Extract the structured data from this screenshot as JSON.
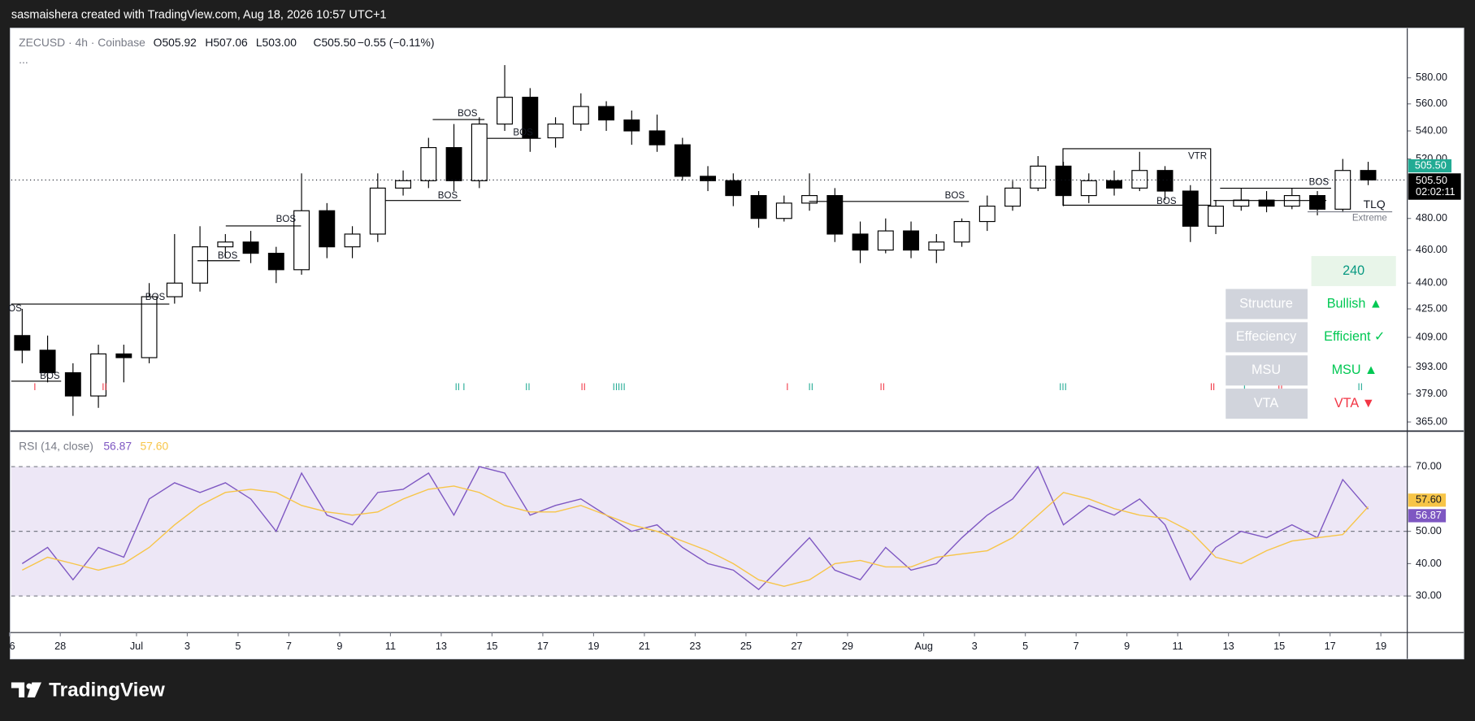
{
  "header": {
    "credit": "sasmaishera created with TradingView.com, Aug 18, 2026 10:57 UTC+1",
    "footer_logo": "TradingView"
  },
  "chart_data": [
    {
      "type": "candlestick",
      "title": "ZECUSD · 4h · Coinbase",
      "legend": [
        "O505.92",
        "H507.06",
        "L503.00",
        "C505.50",
        "−0.55 (−0.11%)"
      ],
      "more": "...",
      "open": [
        410,
        402,
        390,
        378,
        400,
        398,
        432,
        440,
        462,
        465,
        458,
        448,
        485,
        462,
        470,
        500,
        505,
        528,
        505,
        545,
        565,
        535,
        545,
        558,
        548,
        540,
        530,
        508,
        505,
        495,
        480,
        490,
        495,
        470,
        460,
        472,
        460,
        465,
        478,
        488,
        500,
        515,
        495,
        505,
        500,
        512,
        498,
        475,
        488,
        492,
        488,
        495,
        486,
        512
      ],
      "high": [
        425,
        410,
        395,
        405,
        405,
        440,
        470,
        475,
        470,
        472,
        462,
        510,
        490,
        475,
        510,
        512,
        535,
        545,
        550,
        590,
        572,
        550,
        568,
        562,
        555,
        552,
        535,
        515,
        510,
        498,
        495,
        510,
        500,
        478,
        480,
        478,
        470,
        480,
        495,
        505,
        522,
        518,
        510,
        512,
        525,
        515,
        502,
        492,
        500,
        498,
        500,
        498,
        520,
        518
      ],
      "low": [
        395,
        385,
        368,
        372,
        385,
        395,
        428,
        435,
        455,
        452,
        440,
        445,
        455,
        455,
        465,
        495,
        500,
        498,
        500,
        540,
        525,
        528,
        540,
        540,
        530,
        525,
        505,
        498,
        488,
        474,
        478,
        485,
        465,
        452,
        458,
        455,
        452,
        462,
        472,
        485,
        498,
        488,
        490,
        495,
        498,
        492,
        465,
        470,
        485,
        484,
        486,
        482,
        484,
        502
      ],
      "close": [
        402,
        390,
        378,
        400,
        398,
        432,
        440,
        462,
        465,
        458,
        448,
        485,
        462,
        470,
        500,
        505,
        528,
        505,
        545,
        565,
        535,
        545,
        558,
        548,
        540,
        530,
        508,
        505,
        495,
        480,
        490,
        495,
        470,
        460,
        472,
        460,
        465,
        478,
        488,
        500,
        515,
        495,
        505,
        500,
        512,
        498,
        475,
        488,
        492,
        488,
        495,
        486,
        512,
        505.5
      ],
      "up_color": "#ffffff",
      "down_color": "#000000",
      "wick_color": "#000000",
      "last_price_labels": [
        "505.50",
        "505.50"
      ],
      "countdown": "02:02:11",
      "ylim": [
        361,
        620
      ],
      "log_scale": true,
      "yticks": [
        {
          "value": 580,
          "label": "580.00"
        },
        {
          "value": 560,
          "label": "560.00"
        },
        {
          "value": 540,
          "label": "540.00"
        },
        {
          "value": 520,
          "label": "520.00"
        },
        {
          "value": 480,
          "label": "480.00"
        },
        {
          "value": 460,
          "label": "460.00"
        },
        {
          "value": 440,
          "label": "440.00"
        },
        {
          "value": 425,
          "label": "425.00"
        },
        {
          "value": 409,
          "label": "409.00"
        },
        {
          "value": 393,
          "label": "393.00"
        },
        {
          "value": 379,
          "label": "379.00"
        },
        {
          "value": 365,
          "label": "365.00"
        }
      ],
      "xlim": [
        0.07,
        55.04
      ],
      "xticks": [
        {
          "value": 0,
          "label": "6"
        },
        {
          "value": 2,
          "label": "28"
        },
        {
          "value": 5,
          "label": "Jul"
        },
        {
          "value": 7,
          "label": "3"
        },
        {
          "value": 9,
          "label": "5"
        },
        {
          "value": 11,
          "label": "7"
        },
        {
          "value": 13,
          "label": "9"
        },
        {
          "value": 15,
          "label": "11"
        },
        {
          "value": 17,
          "label": "13"
        },
        {
          "value": 19,
          "label": "15"
        },
        {
          "value": 21,
          "label": "17"
        },
        {
          "value": 23,
          "label": "19"
        },
        {
          "value": 25,
          "label": "21"
        },
        {
          "value": 27,
          "label": "23"
        },
        {
          "value": 29,
          "label": "25"
        },
        {
          "value": 31,
          "label": "27"
        },
        {
          "value": 33,
          "label": "29"
        },
        {
          "value": 36,
          "label": "Aug"
        },
        {
          "value": 38,
          "label": "3"
        },
        {
          "value": 40,
          "label": "5"
        },
        {
          "value": 42,
          "label": "7"
        },
        {
          "value": 44,
          "label": "9"
        },
        {
          "value": 46,
          "label": "11"
        },
        {
          "value": 48,
          "label": "13"
        },
        {
          "value": 50,
          "label": "15"
        },
        {
          "value": 52,
          "label": "17"
        },
        {
          "value": 54,
          "label": "19"
        }
      ],
      "annotations": [
        "OS",
        "BOS",
        "BOS",
        "BOS",
        "BOS",
        "BOS",
        "BOS",
        "BOS",
        "BOS",
        "VTR",
        "BOS",
        "BOS",
        "TLQ",
        "Extreme"
      ],
      "markers": [
        {
          "text": "I",
          "color": "#f23645"
        },
        {
          "text": "II",
          "color": "#f23645"
        },
        {
          "text": "II I",
          "color": "#22ab94"
        },
        {
          "text": "II",
          "color": "#22ab94"
        },
        {
          "text": "II",
          "color": "#f23645"
        },
        {
          "text": "IIIII",
          "color": "#22ab94"
        },
        {
          "text": "I",
          "color": "#f23645"
        },
        {
          "text": "II",
          "color": "#22ab94"
        },
        {
          "text": "II",
          "color": "#f23645"
        },
        {
          "text": "III",
          "color": "#22ab94"
        },
        {
          "text": "II",
          "color": "#f23645"
        },
        {
          "text": "I",
          "color": "#22ab94"
        },
        {
          "text": "II",
          "color": "#f23645"
        },
        {
          "text": "II",
          "color": "#22ab94"
        }
      ],
      "table": {
        "timeframe": "240",
        "rows": [
          [
            "Structure",
            "Bullish ▲"
          ],
          [
            "Effeciency",
            "Efficient ✓"
          ],
          [
            "MSU",
            "MSU ▲"
          ],
          [
            "VTA",
            "VTA ▼"
          ]
        ]
      }
    },
    {
      "type": "line",
      "title": "RSI (14, close)",
      "series": [
        {
          "color": "#7e57c2",
          "last_label": "56.87",
          "values": [
            40,
            45,
            35,
            45,
            42,
            60,
            65,
            62,
            65,
            60,
            50,
            68,
            55,
            52,
            62,
            63,
            68,
            55,
            70,
            68,
            55,
            58,
            60,
            55,
            50,
            52,
            45,
            40,
            38,
            32,
            40,
            48,
            38,
            35,
            45,
            38,
            40,
            48,
            55,
            60,
            70,
            52,
            58,
            55,
            60,
            52,
            35,
            45,
            50,
            48,
            52,
            48,
            66,
            56.87
          ]
        },
        {
          "color": "#f7c548",
          "last_label": "57.60",
          "values": [
            38,
            42,
            40,
            38,
            40,
            45,
            52,
            58,
            62,
            63,
            62,
            58,
            56,
            55,
            56,
            60,
            63,
            64,
            62,
            58,
            56,
            56,
            58,
            55,
            52,
            50,
            47,
            44,
            40,
            35,
            33,
            35,
            40,
            41,
            39,
            39,
            42,
            43,
            44,
            48,
            55,
            62,
            60,
            57,
            55,
            54,
            50,
            42,
            40,
            44,
            47,
            48,
            49,
            57.6
          ]
        }
      ],
      "levels": [
        70,
        50,
        30
      ],
      "band_color": "#ede7f6",
      "ylim": [
        18.7,
        80.7
      ],
      "yticks": [
        {
          "value": 70,
          "label": "70.00"
        },
        {
          "value": 50,
          "label": "50.00"
        },
        {
          "value": 40,
          "label": "40.00"
        },
        {
          "value": 30,
          "label": "30.00"
        }
      ],
      "xlim": [
        0.07,
        55.04
      ]
    }
  ]
}
